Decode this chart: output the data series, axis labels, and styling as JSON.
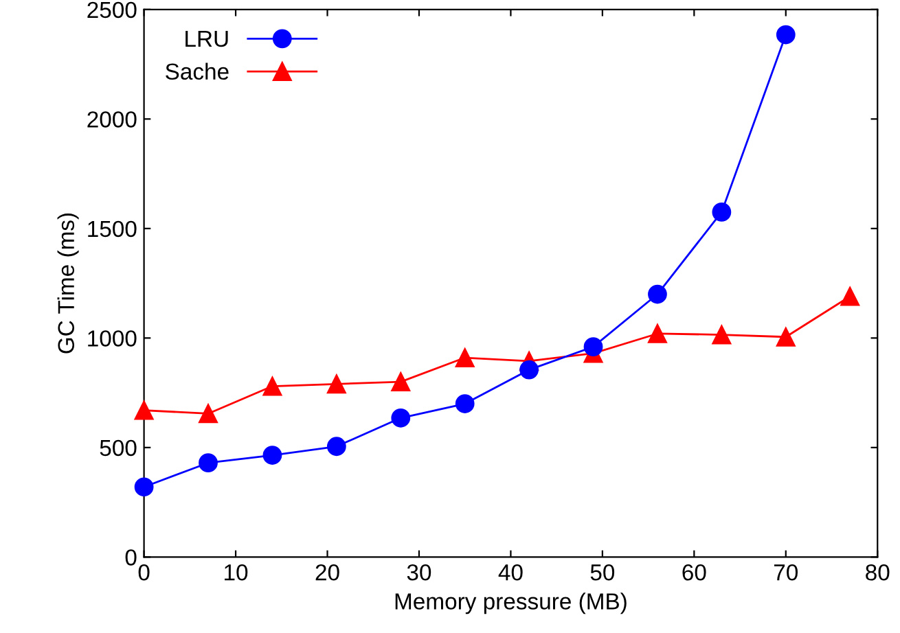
{
  "chart_data": {
    "type": "line",
    "xlabel": "Memory pressure (MB)",
    "ylabel": "GC Time (ms)",
    "xlim": [
      0,
      80
    ],
    "xticks": [
      0,
      10,
      20,
      30,
      40,
      50,
      60,
      70,
      80
    ],
    "ylim": [
      0,
      2500
    ],
    "yticks": [
      0,
      500,
      1000,
      1500,
      2000,
      2500
    ],
    "grid": false,
    "legend": "top left",
    "series": [
      {
        "name": "LRU",
        "color": "#0000ff",
        "marker": "circle",
        "x": [
          0,
          7,
          14,
          21,
          28,
          35,
          42,
          49,
          56,
          63,
          70
        ],
        "values": [
          320,
          430,
          465,
          505,
          635,
          700,
          855,
          960,
          1200,
          1575,
          2385
        ]
      },
      {
        "name": "Sache",
        "color": "#ff0000",
        "marker": "triangle",
        "x": [
          0,
          7,
          14,
          21,
          28,
          35,
          42,
          49,
          56,
          63,
          70,
          77
        ],
        "values": [
          670,
          655,
          780,
          790,
          800,
          910,
          895,
          930,
          1020,
          1015,
          1005,
          1190
        ]
      }
    ]
  }
}
